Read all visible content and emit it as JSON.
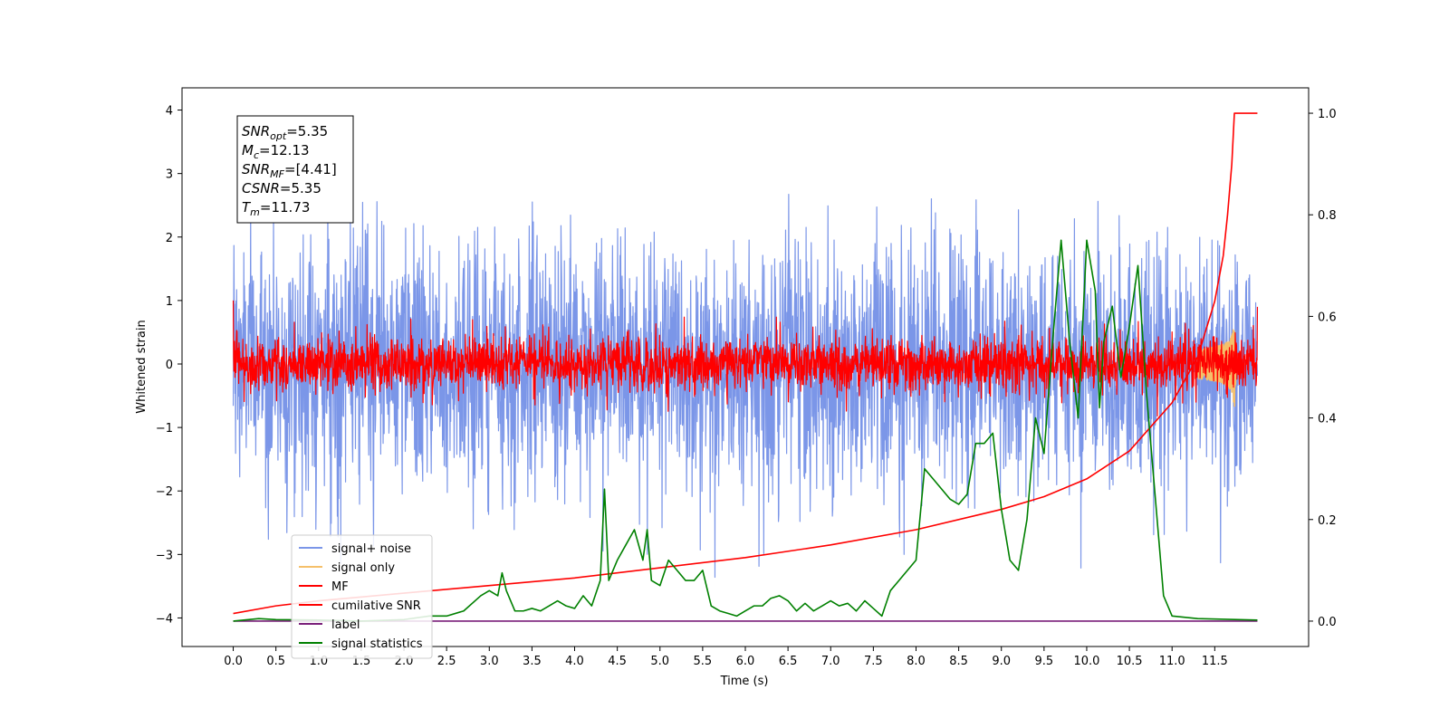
{
  "chart_data": {
    "type": "line",
    "title": "",
    "xlabel": "Time (s)",
    "ylabel": "Whitened strain",
    "ylabel_right": "",
    "xlim": [
      -0.6,
      12.6
    ],
    "ylim": [
      -4.45,
      4.35
    ],
    "ylim_right": [
      -0.05,
      1.05
    ],
    "grid": false,
    "legend_position": "lower-left",
    "x_ticks": [
      "0.0",
      "0.5",
      "1.0",
      "1.5",
      "2.0",
      "2.5",
      "3.0",
      "3.5",
      "4.0",
      "4.5",
      "5.0",
      "5.5",
      "6.0",
      "6.5",
      "7.0",
      "7.5",
      "8.0",
      "8.5",
      "9.0",
      "9.5",
      "10.0",
      "10.5",
      "11.0",
      "11.5"
    ],
    "y_ticks": [
      "4",
      "3",
      "2",
      "1",
      "0",
      "−1",
      "−2",
      "−3",
      "−4"
    ],
    "y_ticks_right": [
      "1.0",
      "0.8",
      "0.6",
      "0.4",
      "0.2",
      "0.0"
    ],
    "annotation": {
      "lines": [
        {
          "main": "SNR",
          "sub": "opt",
          "rest": "=5.35"
        },
        {
          "main": "M",
          "sub": "c",
          "rest": "=12.13"
        },
        {
          "main": "SNR",
          "sub": "MF",
          "rest": "=[4.41]"
        },
        {
          "main": "CSNR",
          "sub": "",
          "rest": "=5.35"
        },
        {
          "main": "T",
          "sub": "m",
          "rest": "=11.73"
        }
      ]
    },
    "series": [
      {
        "name": "signal+ noise",
        "color": "#7b96e8",
        "axis": "left",
        "kind": "noise",
        "x_range": [
          0.0,
          12.0
        ],
        "mean": 0.0,
        "std": 1.0,
        "merger_time": 11.73
      },
      {
        "name": "signal only",
        "color": "#f5c06a",
        "axis": "left",
        "kind": "chirp",
        "x_range": [
          11.3,
          11.9
        ],
        "peak_amplitude": 0.75,
        "merger_time": 11.73
      },
      {
        "name": "MF",
        "color": "#ff0000",
        "axis": "left",
        "kind": "noise",
        "x_range": [
          0.0,
          12.0
        ],
        "mean": 0.0,
        "std": 0.22,
        "start_value": 1.0,
        "end_value": 0.9
      },
      {
        "name": "cumilative SNR",
        "color": "#ff0000",
        "axis": "right",
        "x": [
          0.0,
          0.5,
          1.0,
          2.0,
          3.0,
          4.0,
          5.0,
          6.0,
          7.0,
          8.0,
          9.0,
          9.5,
          10.0,
          10.5,
          11.0,
          11.3,
          11.5,
          11.6,
          11.65,
          11.7,
          11.73,
          12.0
        ],
        "y": [
          0.015,
          0.03,
          0.04,
          0.055,
          0.07,
          0.085,
          0.105,
          0.125,
          0.15,
          0.18,
          0.22,
          0.245,
          0.28,
          0.335,
          0.43,
          0.52,
          0.63,
          0.72,
          0.8,
          0.9,
          1.0,
          1.0
        ]
      },
      {
        "name": "label",
        "color": "#7a1f7a",
        "axis": "right",
        "x": [
          0.0,
          12.0
        ],
        "y": [
          0.0,
          0.0
        ]
      },
      {
        "name": "signal statistics",
        "color": "#008000",
        "axis": "right",
        "x": [
          0.0,
          0.3,
          0.5,
          1.0,
          1.5,
          2.0,
          2.3,
          2.5,
          2.7,
          2.9,
          3.0,
          3.1,
          3.15,
          3.2,
          3.3,
          3.4,
          3.5,
          3.6,
          3.7,
          3.8,
          3.9,
          4.0,
          4.1,
          4.2,
          4.3,
          4.35,
          4.4,
          4.5,
          4.6,
          4.7,
          4.8,
          4.85,
          4.9,
          5.0,
          5.1,
          5.2,
          5.3,
          5.4,
          5.5,
          5.6,
          5.7,
          5.8,
          5.9,
          6.0,
          6.1,
          6.2,
          6.3,
          6.4,
          6.5,
          6.6,
          6.7,
          6.8,
          6.9,
          7.0,
          7.1,
          7.2,
          7.3,
          7.4,
          7.5,
          7.6,
          7.7,
          7.8,
          7.9,
          8.0,
          8.1,
          8.2,
          8.3,
          8.4,
          8.5,
          8.6,
          8.7,
          8.8,
          8.9,
          9.0,
          9.1,
          9.2,
          9.3,
          9.4,
          9.5,
          9.6,
          9.7,
          9.8,
          9.9,
          10.0,
          10.1,
          10.15,
          10.2,
          10.3,
          10.4,
          10.5,
          10.6,
          10.7,
          10.8,
          10.9,
          11.0,
          11.3,
          12.0
        ],
        "y": [
          0.0,
          0.005,
          0.003,
          0.002,
          0.0,
          0.003,
          0.01,
          0.01,
          0.02,
          0.05,
          0.06,
          0.05,
          0.095,
          0.06,
          0.02,
          0.02,
          0.025,
          0.02,
          0.03,
          0.04,
          0.03,
          0.025,
          0.05,
          0.03,
          0.08,
          0.26,
          0.08,
          0.12,
          0.15,
          0.18,
          0.12,
          0.18,
          0.08,
          0.07,
          0.12,
          0.1,
          0.08,
          0.08,
          0.1,
          0.03,
          0.02,
          0.015,
          0.01,
          0.02,
          0.03,
          0.03,
          0.045,
          0.05,
          0.04,
          0.02,
          0.035,
          0.02,
          0.03,
          0.04,
          0.03,
          0.035,
          0.02,
          0.04,
          0.025,
          0.01,
          0.06,
          0.08,
          0.1,
          0.12,
          0.3,
          0.28,
          0.26,
          0.24,
          0.23,
          0.25,
          0.35,
          0.35,
          0.37,
          0.22,
          0.12,
          0.1,
          0.2,
          0.4,
          0.33,
          0.55,
          0.75,
          0.55,
          0.4,
          0.75,
          0.65,
          0.42,
          0.55,
          0.62,
          0.48,
          0.58,
          0.7,
          0.45,
          0.25,
          0.05,
          0.01,
          0.005,
          0.002
        ]
      }
    ]
  }
}
